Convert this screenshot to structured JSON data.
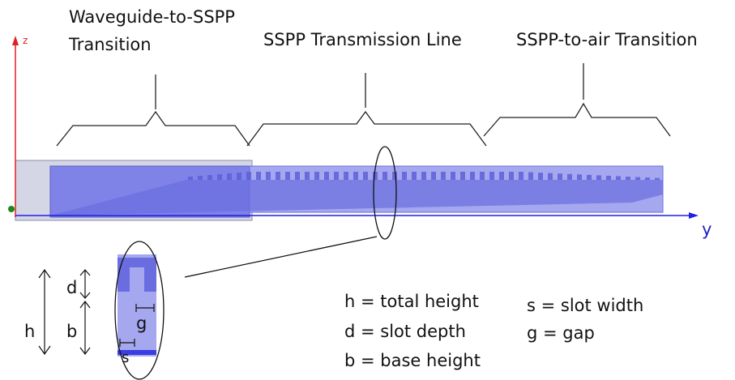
{
  "sections": [
    {
      "lines": [
        "Waveguide-to-SSPP",
        "Transition"
      ]
    },
    {
      "lines": [
        "SSPP Transmission Line"
      ]
    },
    {
      "lines": [
        "SSPP-to-air Transition"
      ]
    }
  ],
  "axes": {
    "z": "z",
    "y": "y"
  },
  "dimensions": {
    "h": "h",
    "d": "d",
    "b": "b",
    "g": "g",
    "s": "s"
  },
  "legend": [
    "h = total height",
    "d = slot depth",
    "b = base height",
    "s = slot width",
    "g = gap"
  ]
}
